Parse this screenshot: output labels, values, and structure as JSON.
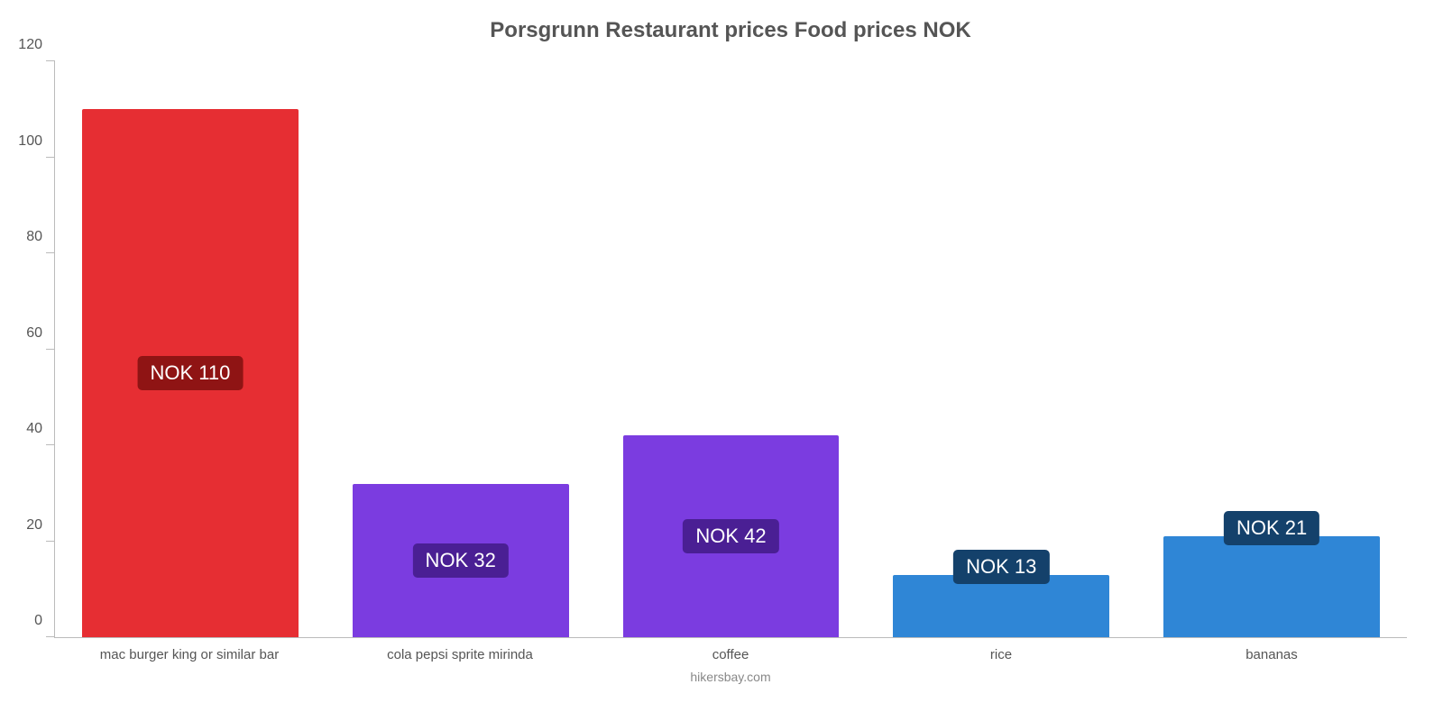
{
  "chart": {
    "type": "bar",
    "title": "Porsgrunn Restaurant prices Food prices NOK",
    "title_fontsize": 24,
    "title_color": "#555555",
    "credit": "hikersbay.com",
    "credit_fontsize": 14,
    "credit_color": "#888888",
    "background_color": "#ffffff",
    "axis_color": "#bbbbbb",
    "label_color": "#555555",
    "ylim": [
      0,
      120
    ],
    "ytick_step": 20,
    "yticks": [
      0,
      20,
      40,
      60,
      80,
      100,
      120
    ],
    "tick_fontsize": 16,
    "xlabel_fontsize": 15,
    "bar_width_pct": 80,
    "value_label_fontsize": 22,
    "value_label_text_color": "#ffffff",
    "value_label_radius": 5,
    "bars": [
      {
        "category": "mac burger king or similar bar",
        "value": 110,
        "value_text": "NOK 110",
        "bar_color": "#e62e33",
        "label_bg": "#8f1414",
        "label_pos": "middle"
      },
      {
        "category": "cola pepsi sprite mirinda",
        "value": 32,
        "value_text": "NOK 32",
        "bar_color": "#7b3ce0",
        "label_bg": "#4a1f94",
        "label_pos": "middle"
      },
      {
        "category": "coffee",
        "value": 42,
        "value_text": "NOK 42",
        "bar_color": "#7b3ce0",
        "label_bg": "#4a1f94",
        "label_pos": "middle"
      },
      {
        "category": "rice",
        "value": 13,
        "value_text": "NOK 13",
        "bar_color": "#2f86d6",
        "label_bg": "#14416b",
        "label_pos": "above"
      },
      {
        "category": "bananas",
        "value": 21,
        "value_text": "NOK 21",
        "bar_color": "#2f86d6",
        "label_bg": "#14416b",
        "label_pos": "above"
      }
    ]
  }
}
